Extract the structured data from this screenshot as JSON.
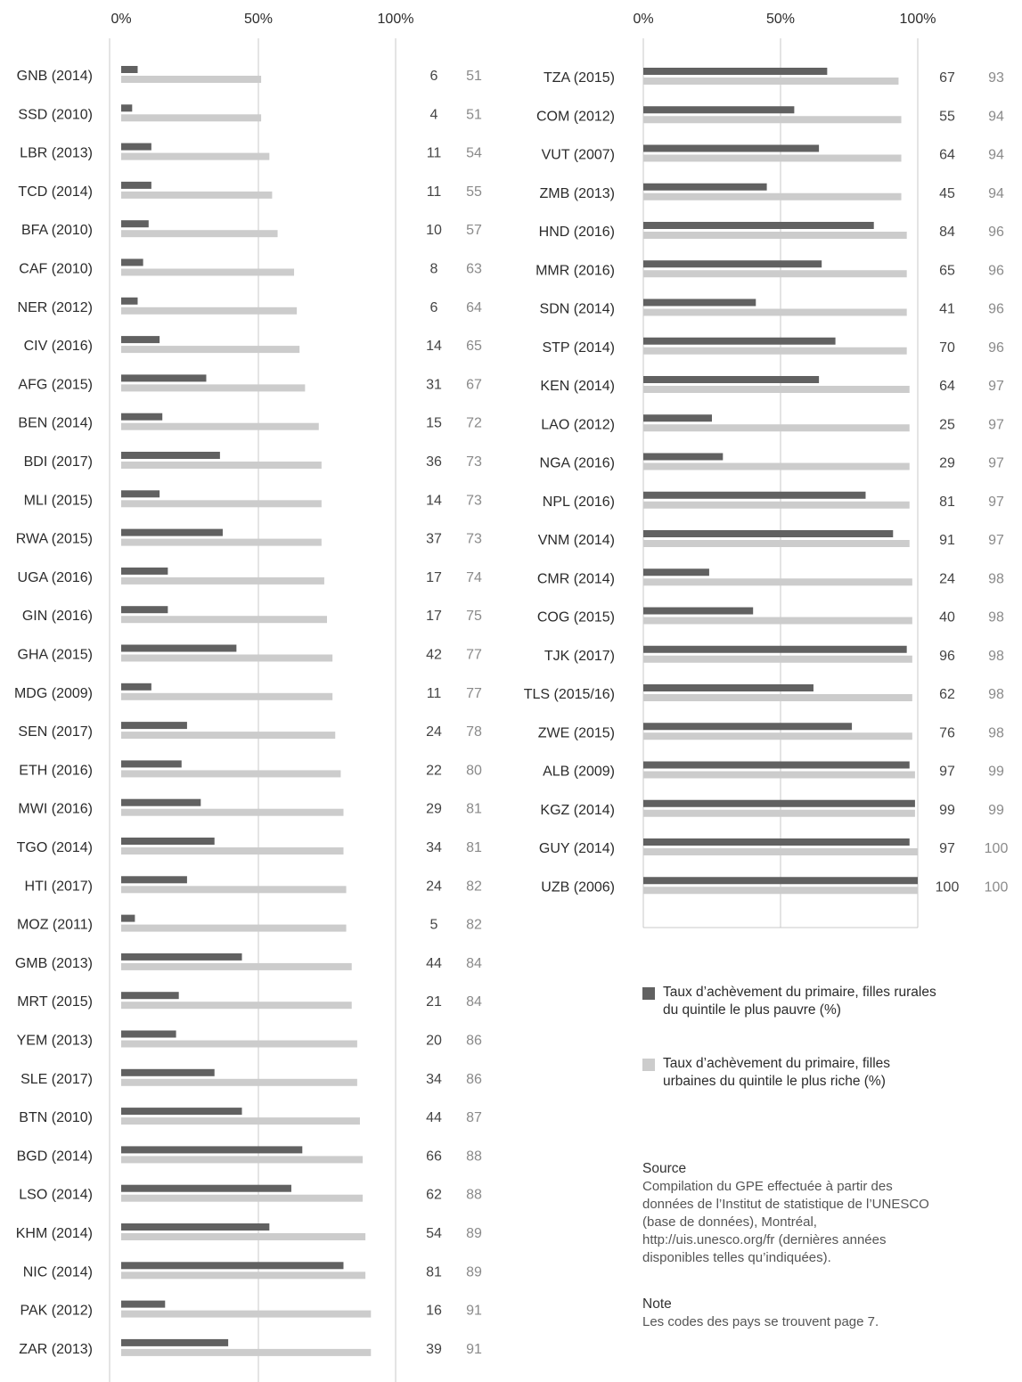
{
  "colors": {
    "poor": "#616161",
    "rich": "#cccccc",
    "axis": "#c8c8c8",
    "rich_text": "#8a8a8a"
  },
  "legend": {
    "poor_label": "Taux d’achèvement du primaire, filles rurales du quintile le plus pauvre (%)",
    "rich_label": "Taux d’achèvement du primaire, filles urbaines du quintile le plus riche (%)"
  },
  "source": {
    "heading": "Source",
    "text": "Compilation du GPE effectuée à partir des données de l’Institut de statistique de l’UNESCO (base de données), Montréal, http://uis.unesco.org/fr (dernières années disponibles telles qu’indiquées)."
  },
  "note": {
    "heading": "Note",
    "text": "Les codes des pays se trouvent page 7."
  },
  "chart_data": [
    {
      "type": "bar",
      "orientation": "horizontal",
      "xlim": [
        0,
        100
      ],
      "ticks": [
        "0%",
        "50%",
        "100%"
      ],
      "categories": [
        "GNB (2014)",
        "SSD (2010)",
        "LBR (2013)",
        "TCD (2014)",
        "BFA (2010)",
        "CAF (2010)",
        "NER (2012)",
        "CIV (2016)",
        "AFG (2015)",
        "BEN (2014)",
        "BDI (2017)",
        "MLI (2015)",
        "RWA (2015)",
        "UGA (2016)",
        "GIN (2016)",
        "GHA (2015)",
        "MDG (2009)",
        "SEN (2017)",
        "ETH (2016)",
        "MWI (2016)",
        "TGO (2014)",
        "HTI (2017)",
        "MOZ (2011)",
        "GMB (2013)",
        "MRT (2015)",
        "YEM (2013)",
        "SLE (2017)",
        "BTN (2010)",
        "BGD (2014)",
        "LSO (2014)",
        "KHM (2014)",
        "NIC (2014)",
        "PAK (2012)",
        "ZAR (2013)"
      ],
      "series": [
        {
          "values": [
            6,
            4,
            11,
            11,
            10,
            8,
            6,
            14,
            31,
            15,
            36,
            14,
            37,
            17,
            17,
            42,
            11,
            24,
            22,
            29,
            34,
            24,
            5,
            44,
            21,
            20,
            34,
            44,
            66,
            62,
            54,
            81,
            16,
            39
          ]
        },
        {
          "values": [
            51,
            51,
            54,
            55,
            57,
            63,
            64,
            65,
            67,
            72,
            73,
            73,
            73,
            74,
            75,
            77,
            77,
            78,
            80,
            81,
            81,
            82,
            82,
            84,
            84,
            86,
            86,
            87,
            88,
            88,
            89,
            89,
            91,
            91
          ]
        }
      ]
    },
    {
      "type": "bar",
      "orientation": "horizontal",
      "xlim": [
        0,
        100
      ],
      "ticks": [
        "0%",
        "50%",
        "100%"
      ],
      "categories": [
        "TZA (2015)",
        "COM (2012)",
        "VUT (2007)",
        "ZMB (2013)",
        "HND (2016)",
        "MMR (2016)",
        "SDN (2014)",
        "STP (2014)",
        "KEN (2014)",
        "LAO (2012)",
        "NGA (2016)",
        "NPL (2016)",
        "VNM (2014)",
        "CMR (2014)",
        "COG (2015)",
        "TJK (2017)",
        "TLS (2015/16)",
        "ZWE (2015)",
        "ALB (2009)",
        "KGZ (2014)",
        "GUY (2014)",
        "UZB (2006)"
      ],
      "series": [
        {
          "values": [
            67,
            55,
            64,
            45,
            84,
            65,
            41,
            70,
            64,
            25,
            29,
            81,
            91,
            24,
            40,
            96,
            62,
            76,
            97,
            99,
            97,
            100
          ]
        },
        {
          "values": [
            93,
            94,
            94,
            94,
            96,
            96,
            96,
            96,
            97,
            97,
            97,
            97,
            97,
            98,
            98,
            98,
            98,
            98,
            99,
            99,
            100,
            100
          ]
        }
      ]
    }
  ]
}
